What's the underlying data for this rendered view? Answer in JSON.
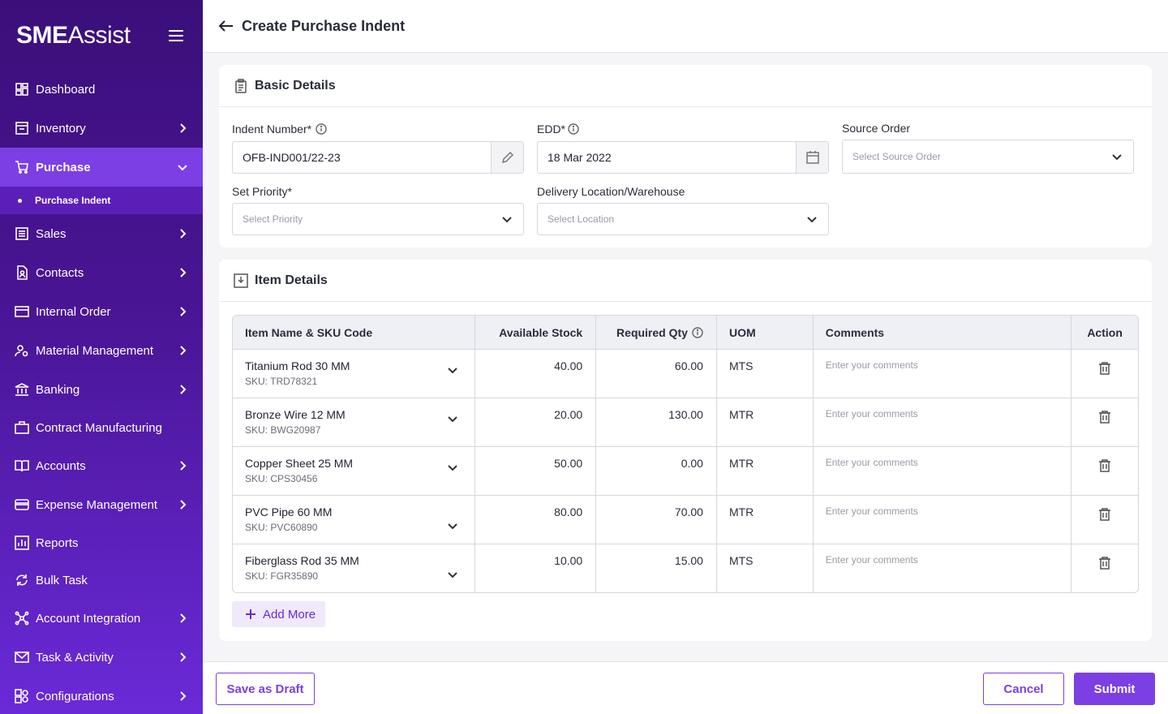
{
  "brand": {
    "part1": "SME",
    "part2": "Assist"
  },
  "sidebar": {
    "items": [
      {
        "label": "Dashboard",
        "icon": "dashboard-icon"
      },
      {
        "label": "Inventory",
        "icon": "inventory-icon"
      },
      {
        "label": "Purchase",
        "icon": "cart-icon"
      },
      {
        "label": "Sales",
        "icon": "sales-icon"
      },
      {
        "label": "Contacts",
        "icon": "contacts-icon"
      },
      {
        "label": "Internal Order",
        "icon": "card-icon"
      },
      {
        "label": "Material Management",
        "icon": "material-icon"
      },
      {
        "label": "Banking",
        "icon": "bank-icon"
      },
      {
        "label": "Contract Manufacturing",
        "icon": "briefcase-icon"
      },
      {
        "label": "Accounts",
        "icon": "book-icon"
      },
      {
        "label": "Expense Management",
        "icon": "wallet-icon"
      },
      {
        "label": "Reports",
        "icon": "report-icon"
      },
      {
        "label": "Bulk Task",
        "icon": "sync-icon"
      },
      {
        "label": "Account Integration",
        "icon": "integration-icon"
      },
      {
        "label": "Task & Activity",
        "icon": "mail-icon"
      },
      {
        "label": "Configurations",
        "icon": "config-icon"
      }
    ],
    "sub_item": "Purchase Indent"
  },
  "header": {
    "title": "Create Purchase Indent"
  },
  "basic": {
    "title": "Basic Details",
    "indent_label": "Indent Number*",
    "indent_value": "OFB-IND001/22-23",
    "edd_label": "EDD*",
    "edd_value": "18 Mar 2022",
    "source_label": "Source Order",
    "source_placeholder": "Select Source Order",
    "priority_label": "Set Priority*",
    "priority_placeholder": "Select Priority",
    "location_label": "Delivery Location/Warehouse",
    "location_placeholder": "Select Location"
  },
  "items": {
    "title": "Item Details",
    "headers": [
      "Item Name & SKU Code",
      "Available Stock",
      "Required Qty",
      "UOM",
      "Comments",
      "Action"
    ],
    "rows": [
      {
        "name": "Titanium Rod 30 MM",
        "sku": "SKU: TRD78321",
        "stock": "40.00",
        "qty": "60.00",
        "uom": "MTS",
        "comment": "Enter your comments"
      },
      {
        "name": "Bronze Wire 12 MM",
        "sku": "SKU: BWG20987",
        "stock": "20.00",
        "qty": "130.00",
        "uom": "MTR",
        "comment": "Enter your comments"
      },
      {
        "name": "Copper Sheet 25 MM",
        "sku": "SKU: CPS30456",
        "stock": "50.00",
        "qty": "0.00",
        "uom": "MTR",
        "comment": "Enter your comments"
      },
      {
        "name": "PVC Pipe 60 MM",
        "sku": "SKU: PVC60890",
        "stock": "80.00",
        "qty": "70.00",
        "uom": "MTR",
        "comment": "Enter your comments"
      },
      {
        "name": "Fiberglass Rod 35 MM",
        "sku": "SKU: FGR35890",
        "stock": "10.00",
        "qty": "15.00",
        "uom": "MTS",
        "comment": "Enter your comments"
      }
    ],
    "add_more": "Add More"
  },
  "footer": {
    "draft": "Save as Draft",
    "cancel": "Cancel",
    "submit": "Submit"
  },
  "colors": {
    "accent": "#7b3fe4",
    "sidebar_top": "#3b0f7a",
    "sidebar_bottom": "#6a2ad8"
  }
}
